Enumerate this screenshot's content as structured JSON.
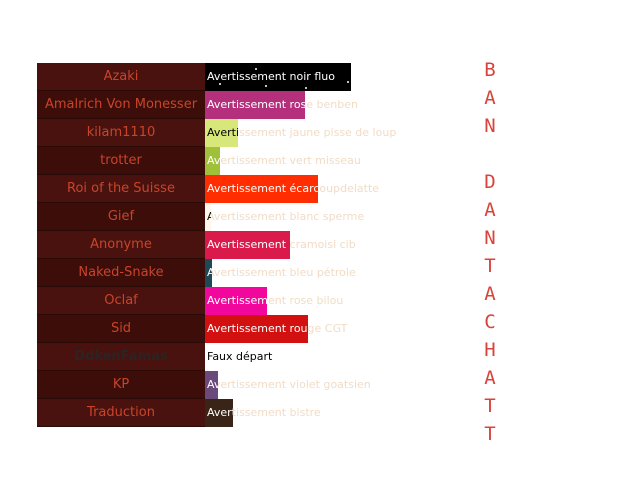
{
  "rows": [
    {
      "name": "Azaki",
      "label": "Avertissement noir fluo",
      "level": 0.579,
      "color": "#000000",
      "text_color": "#ffffff",
      "starry": true
    },
    {
      "name": "Amalrich Von Monesser",
      "label": "Avertissement rose benben",
      "level": 0.397,
      "color": "#b5307c",
      "text_color": "#ffffff"
    },
    {
      "name": "kilam1110",
      "label": "Avertissement jaune pisse de loup",
      "level": 0.131,
      "color": "#d8e77a",
      "text_color": "#000000"
    },
    {
      "name": "trotter",
      "label": "Avertissement vert misseau",
      "level": 0.058,
      "color": "#a0c03a",
      "text_color": "#ffffff"
    },
    {
      "name": "Roi of the Suisse",
      "label": "Avertissement écarcoupdelatte",
      "level": 0.45,
      "color": "#ff2d00",
      "text_color": "#ffffff"
    },
    {
      "name": "Gief",
      "label": "Avertissement blanc sperme",
      "level": 0.019,
      "color": "#fff7ec",
      "text_color": "#000000"
    },
    {
      "name": "Anonyme",
      "label": "Avertissement cramoisi cib",
      "level": 0.338,
      "color": "#da1a4a",
      "text_color": "#ffffff"
    },
    {
      "name": "Naked-Snake",
      "label": "Avertissement bleu pétrole",
      "level": 0.029,
      "color": "#1f4a55",
      "text_color": "#ffffff"
    },
    {
      "name": "Oclaf",
      "label": "Avertissement rose bilou",
      "level": 0.245,
      "color": "#f2079c",
      "text_color": "#ffffff"
    },
    {
      "name": "Sid",
      "label": "Avertissement rouge CGT",
      "level": 0.41,
      "color": "#d1100f",
      "text_color": "#ffffff"
    },
    {
      "name": "DdkenFamas",
      "label": "Faux départ",
      "level": 0,
      "color": "#ffffff",
      "text_color": "#000000",
      "dim": true
    },
    {
      "name": "KP",
      "label": "Avertissement violet goatsien",
      "level": 0.05,
      "color": "#6a4a7a",
      "text_color": "#ffffff"
    },
    {
      "name": "Traduction",
      "label": "Avertissement bistre",
      "level": 0.113,
      "color": "#3a2418",
      "text_color": "#ffffff"
    }
  ],
  "side_title_top": "BAN",
  "side_title_bottom": "DANTACHATT",
  "colors": {
    "name_text": "#c8442a",
    "side_title": "#d8433a"
  }
}
